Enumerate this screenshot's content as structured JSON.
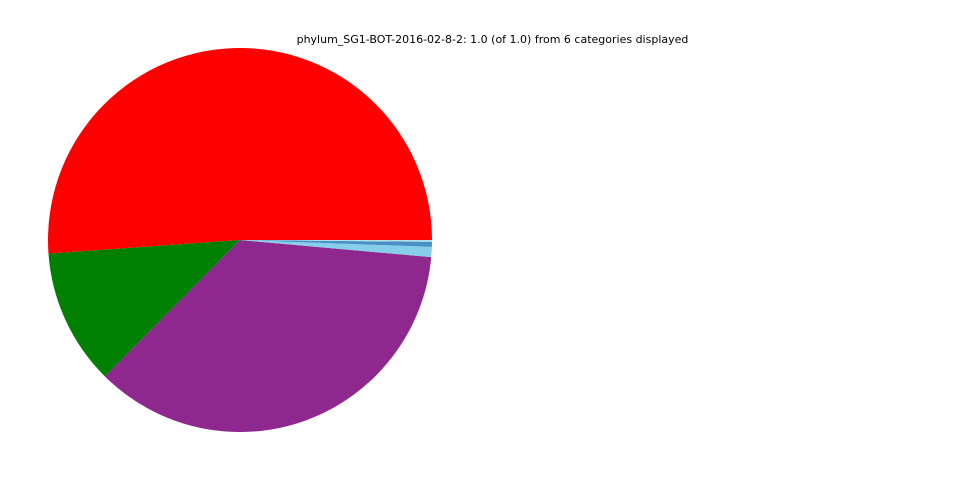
{
  "chart_data": {
    "type": "pie",
    "title": "phylum_SG1-BOT-2016-02-8-2: 1.0 (of 1.0) from 6 categories displayed",
    "start_angle_deg": 0,
    "direction": "counterclockwise",
    "legend": "none",
    "slices": [
      {
        "value": 0.5113,
        "color": "#ff0000"
      },
      {
        "value": 0.1145,
        "color": "#008000"
      },
      {
        "value": 0.36,
        "color": "#8e278e"
      },
      {
        "value": 0.0085,
        "color": "#87ceeb"
      },
      {
        "value": 0.0042,
        "color": "#4a90c8"
      },
      {
        "value": 0.0015,
        "color": "#b0e0e6"
      }
    ]
  }
}
